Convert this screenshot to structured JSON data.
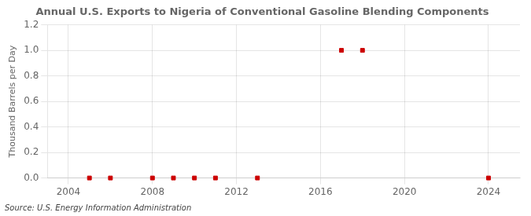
{
  "chart_data": {
    "type": "scatter",
    "title": "Annual U.S. Exports to Nigeria of Conventional Gasoline Blending Components",
    "y_label": "Thousand Barrels per Day",
    "annotations": [
      "Source: U.S. Energy Information Administration"
    ],
    "x": [
      2005,
      2006,
      2008,
      2009,
      2010,
      2011,
      2013,
      2017,
      2018,
      2024
    ],
    "values": [
      0.0,
      0.0,
      0.0,
      0.0,
      0.0,
      0.0,
      0.0,
      1.0,
      1.0,
      0.0
    ],
    "color": "#cc0000",
    "marker": "square",
    "xlim": [
      2003,
      2025.5
    ],
    "xticks": [
      2004,
      2008,
      2012,
      2016,
      2020,
      2024
    ],
    "ylim": [
      0.0,
      1.2
    ],
    "yticks": [
      {
        "value": 0,
        "label": "0.0"
      },
      0.2,
      0.4,
      0.6,
      0.8,
      {
        "value": 1,
        "label": "1.0"
      },
      1.2
    ],
    "grid": true
  }
}
